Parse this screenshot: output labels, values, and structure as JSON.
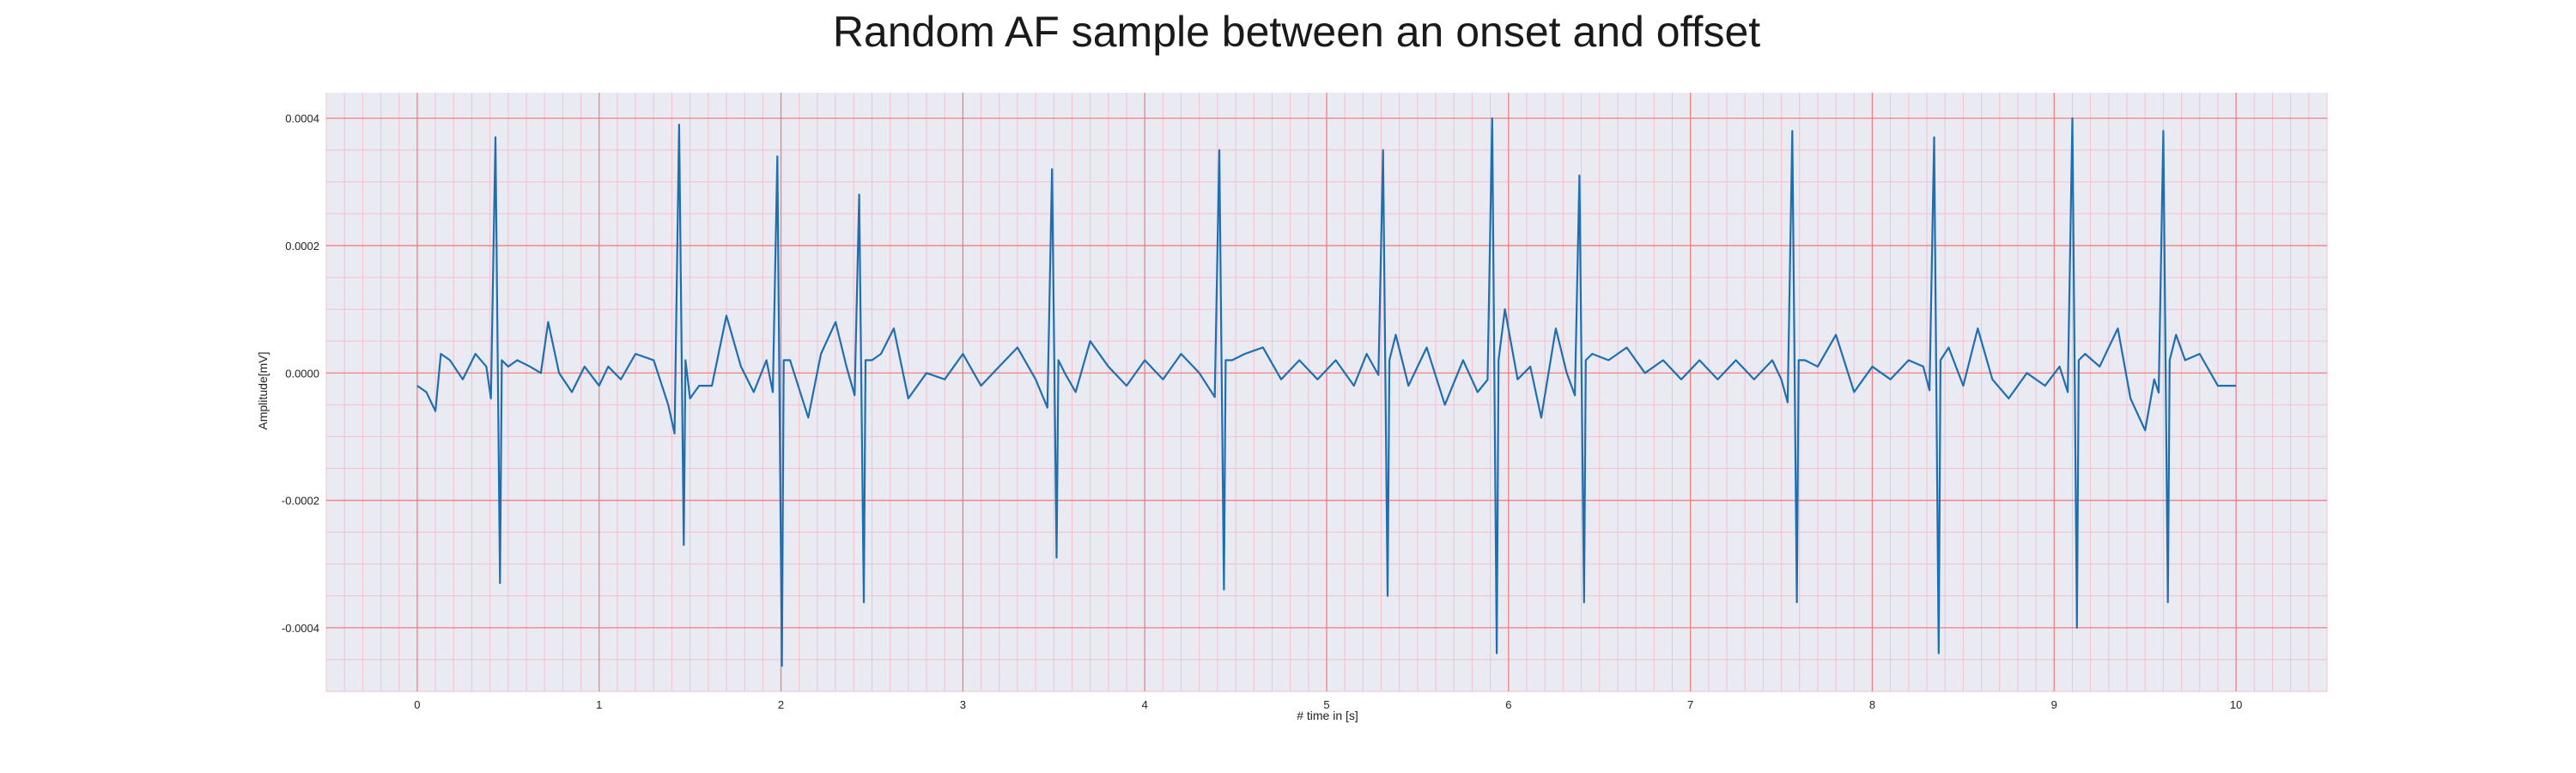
{
  "chart_data": {
    "type": "line",
    "title": "Random AF sample between an onset and offset",
    "xlabel": "# time in [s]",
    "ylabel": "Amplitude[mV]",
    "xlim": [
      -0.5,
      10.5
    ],
    "ylim": [
      -0.0005,
      0.00044
    ],
    "xticks": [
      0,
      1,
      2,
      3,
      4,
      5,
      6,
      7,
      8,
      9,
      10
    ],
    "xtick_labels": [
      "0",
      "1",
      "2",
      "3",
      "4",
      "5",
      "6",
      "7",
      "8",
      "9",
      "10"
    ],
    "yticks": [
      0.0004,
      0.0002,
      0.0,
      -0.0002,
      -0.0004
    ],
    "ytick_labels": [
      "0.0004",
      "0.0002",
      "0.0000",
      "-0.0002",
      "-0.0004"
    ],
    "grid": true,
    "legend": "none",
    "colors": {
      "line": "#1f6fb0",
      "plot_background": "#eaeaf2",
      "major_grid": "#f08080",
      "minor_grid": "#f4c0cc"
    },
    "series": [
      {
        "beats": [
          {
            "t": 0.43,
            "up": 0.00037,
            "down": -0.00033
          },
          {
            "t": 1.44,
            "up": 0.00039,
            "down": -0.00027
          },
          {
            "t": 1.98,
            "up": 0.00034,
            "down": -0.00046
          },
          {
            "t": 2.43,
            "up": 0.00028,
            "down": -0.00036
          },
          {
            "t": 3.49,
            "up": 0.00032,
            "down": -0.00029
          },
          {
            "t": 4.41,
            "up": 0.00035,
            "down": -0.00034
          },
          {
            "t": 5.31,
            "up": 0.00035,
            "down": -0.00035
          },
          {
            "t": 5.91,
            "up": 0.0004,
            "down": -0.00044
          },
          {
            "t": 6.39,
            "up": 0.00031,
            "down": -0.00036
          },
          {
            "t": 7.56,
            "up": 0.00038,
            "down": -0.00036
          },
          {
            "t": 8.34,
            "up": 0.00037,
            "down": -0.00044
          },
          {
            "t": 9.1,
            "up": 0.0004,
            "down": -0.0004
          },
          {
            "t": 9.6,
            "up": 0.00038,
            "down": -0.00036
          }
        ],
        "baseline": [
          [
            0.0,
            -2e-05
          ],
          [
            0.05,
            -3e-05
          ],
          [
            0.1,
            -6e-05
          ],
          [
            0.13,
            3e-05
          ],
          [
            0.18,
            2e-05
          ],
          [
            0.25,
            -1e-05
          ],
          [
            0.32,
            3e-05
          ],
          [
            0.38,
            1e-05
          ],
          [
            0.5,
            1e-05
          ],
          [
            0.55,
            2e-05
          ],
          [
            0.62,
            1e-05
          ],
          [
            0.68,
            0.0
          ],
          [
            0.72,
            8e-05
          ],
          [
            0.78,
            0.0
          ],
          [
            0.85,
            -3e-05
          ],
          [
            0.92,
            1e-05
          ],
          [
            1.0,
            -2e-05
          ],
          [
            1.05,
            1e-05
          ],
          [
            1.12,
            -1e-05
          ],
          [
            1.2,
            3e-05
          ],
          [
            1.3,
            2e-05
          ],
          [
            1.38,
            -5e-05
          ],
          [
            1.5,
            -4e-05
          ],
          [
            1.55,
            -2e-05
          ],
          [
            1.62,
            -2e-05
          ],
          [
            1.7,
            9e-05
          ],
          [
            1.78,
            1e-05
          ],
          [
            1.85,
            -3e-05
          ],
          [
            1.92,
            2e-05
          ],
          [
            2.05,
            2e-05
          ],
          [
            2.15,
            -7e-05
          ],
          [
            2.22,
            3e-05
          ],
          [
            2.3,
            8e-05
          ],
          [
            2.36,
            1e-05
          ],
          [
            2.5,
            2e-05
          ],
          [
            2.55,
            3e-05
          ],
          [
            2.62,
            7e-05
          ],
          [
            2.7,
            -4e-05
          ],
          [
            2.8,
            0.0
          ],
          [
            2.9,
            -1e-05
          ],
          [
            3.0,
            3e-05
          ],
          [
            3.1,
            -2e-05
          ],
          [
            3.2,
            1e-05
          ],
          [
            3.3,
            4e-05
          ],
          [
            3.4,
            -1e-05
          ],
          [
            3.56,
            0.0
          ],
          [
            3.62,
            -3e-05
          ],
          [
            3.7,
            5e-05
          ],
          [
            3.8,
            1e-05
          ],
          [
            3.9,
            -2e-05
          ],
          [
            4.0,
            2e-05
          ],
          [
            4.1,
            -1e-05
          ],
          [
            4.2,
            3e-05
          ],
          [
            4.3,
            0.0
          ],
          [
            4.48,
            2e-05
          ],
          [
            4.55,
            3e-05
          ],
          [
            4.65,
            4e-05
          ],
          [
            4.75,
            -1e-05
          ],
          [
            4.85,
            2e-05
          ],
          [
            4.95,
            -1e-05
          ],
          [
            5.05,
            2e-05
          ],
          [
            5.15,
            -2e-05
          ],
          [
            5.22,
            3e-05
          ],
          [
            5.38,
            6e-05
          ],
          [
            5.45,
            -2e-05
          ],
          [
            5.55,
            4e-05
          ],
          [
            5.65,
            -5e-05
          ],
          [
            5.75,
            2e-05
          ],
          [
            5.83,
            -3e-05
          ],
          [
            5.98,
            0.0001
          ],
          [
            6.05,
            -1e-05
          ],
          [
            6.12,
            1e-05
          ],
          [
            6.18,
            -7e-05
          ],
          [
            6.26,
            7e-05
          ],
          [
            6.32,
            0.0
          ],
          [
            6.46,
            3e-05
          ],
          [
            6.55,
            2e-05
          ],
          [
            6.65,
            4e-05
          ],
          [
            6.75,
            0.0
          ],
          [
            6.85,
            2e-05
          ],
          [
            6.95,
            -1e-05
          ],
          [
            7.05,
            2e-05
          ],
          [
            7.15,
            -1e-05
          ],
          [
            7.25,
            2e-05
          ],
          [
            7.35,
            -1e-05
          ],
          [
            7.45,
            2e-05
          ],
          [
            7.5,
            -1e-05
          ],
          [
            7.63,
            2e-05
          ],
          [
            7.7,
            1e-05
          ],
          [
            7.8,
            6e-05
          ],
          [
            7.9,
            -3e-05
          ],
          [
            8.0,
            1e-05
          ],
          [
            8.1,
            -1e-05
          ],
          [
            8.2,
            2e-05
          ],
          [
            8.28,
            1e-05
          ],
          [
            8.42,
            4e-05
          ],
          [
            8.5,
            -2e-05
          ],
          [
            8.58,
            7e-05
          ],
          [
            8.66,
            -1e-05
          ],
          [
            8.75,
            -4e-05
          ],
          [
            8.85,
            0.0
          ],
          [
            8.95,
            -2e-05
          ],
          [
            9.03,
            1e-05
          ],
          [
            9.17,
            3e-05
          ],
          [
            9.25,
            1e-05
          ],
          [
            9.35,
            7e-05
          ],
          [
            9.42,
            -4e-05
          ],
          [
            9.5,
            -9e-05
          ],
          [
            9.55,
            -1e-05
          ],
          [
            9.67,
            6e-05
          ],
          [
            9.72,
            2e-05
          ],
          [
            9.8,
            3e-05
          ],
          [
            9.9,
            -2e-05
          ],
          [
            10.0,
            -2e-05
          ]
        ]
      }
    ]
  }
}
